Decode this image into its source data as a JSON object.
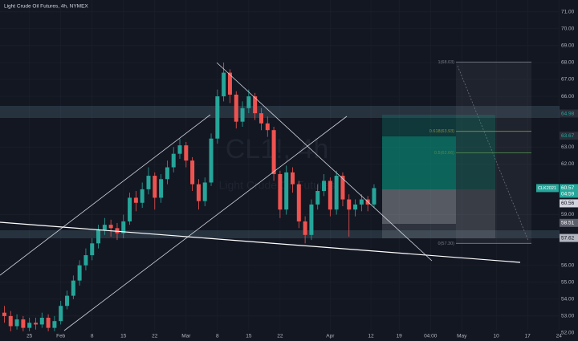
{
  "chart_data": {
    "type": "candlestick",
    "title": "Light Crude Oil Futures, 4h, NYMEX",
    "watermark": [
      "CL1!, 4h",
      "Light Crude Oil Futures"
    ],
    "up_color": "#26a69a",
    "down_color": "#ef5350",
    "x": [
      -4,
      -3,
      -2,
      -1,
      0,
      1,
      2,
      3,
      4,
      5,
      6,
      7,
      8,
      9,
      10,
      11,
      12,
      13,
      14,
      15,
      16,
      17,
      18,
      19,
      20,
      21,
      22,
      23,
      24,
      25,
      26,
      27,
      28,
      29,
      30,
      31,
      32,
      33,
      34,
      35,
      36,
      37,
      38,
      39,
      40,
      41,
      42,
      43,
      44,
      45,
      46,
      47,
      48,
      49,
      50,
      51,
      52,
      53,
      54,
      55
    ],
    "open": [
      53.2,
      53.0,
      52.4,
      52.8,
      52.3,
      52.6,
      52.5,
      52.9,
      52.3,
      52.7,
      53.6,
      54.2,
      55.1,
      56.0,
      56.6,
      57.3,
      58.1,
      58.4,
      58.2,
      57.9,
      58.6,
      60.0,
      59.7,
      60.5,
      61.3,
      60.0,
      61.1,
      61.8,
      62.6,
      63.1,
      62.2,
      60.8,
      59.8,
      60.9,
      63.5,
      66.0,
      67.4,
      66.1,
      64.5,
      65.3,
      66.0,
      65.0,
      64.4,
      64.0,
      61.4,
      59.3,
      61.5,
      60.8,
      58.6,
      57.8,
      59.6,
      60.4,
      61.0,
      59.3,
      61.3,
      59.9,
      59.3,
      59.6,
      59.9,
      59.6
    ],
    "high": [
      53.6,
      53.3,
      53.1,
      53.0,
      52.9,
      52.9,
      53.2,
      53.1,
      53.0,
      53.9,
      54.5,
      55.4,
      56.3,
      57.0,
      57.6,
      58.4,
      58.8,
      58.7,
      58.5,
      59.0,
      60.3,
      60.4,
      60.9,
      61.8,
      61.5,
      61.4,
      62.2,
      63.0,
      63.5,
      63.3,
      62.4,
      61.1,
      61.2,
      63.8,
      66.4,
      68.0,
      67.6,
      66.3,
      65.7,
      66.4,
      66.2,
      65.3,
      64.8,
      64.2,
      61.6,
      61.9,
      61.8,
      61.0,
      58.9,
      59.9,
      60.8,
      61.4,
      61.2,
      61.6,
      61.5,
      60.2,
      59.9,
      60.2,
      60.1,
      60.8
    ],
    "low": [
      52.6,
      52.0,
      52.2,
      52.0,
      52.1,
      52.2,
      52.3,
      52.1,
      52.1,
      52.5,
      53.4,
      54.0,
      54.8,
      55.7,
      56.3,
      57.0,
      57.8,
      57.7,
      57.5,
      57.6,
      58.4,
      59.2,
      59.4,
      60.2,
      59.3,
      59.7,
      60.8,
      61.5,
      62.3,
      61.8,
      60.4,
      59.3,
      59.5,
      60.7,
      63.2,
      65.7,
      65.6,
      64.1,
      64.2,
      65.0,
      64.6,
      64.0,
      63.6,
      61.0,
      58.8,
      59.0,
      60.3,
      58.2,
      57.3,
      57.5,
      59.3,
      60.1,
      58.9,
      59.0,
      59.5,
      57.7,
      58.9,
      59.2,
      59.2,
      59.4
    ],
    "close": [
      53.0,
      52.4,
      52.8,
      52.3,
      52.6,
      52.5,
      52.9,
      52.3,
      52.7,
      53.6,
      54.2,
      55.1,
      56.0,
      56.6,
      57.3,
      58.1,
      58.4,
      58.2,
      57.9,
      58.6,
      60.0,
      59.7,
      60.5,
      61.3,
      60.0,
      61.1,
      61.8,
      62.6,
      63.1,
      62.2,
      60.8,
      59.8,
      60.9,
      63.5,
      66.0,
      67.4,
      66.1,
      64.5,
      65.3,
      66.0,
      65.0,
      64.4,
      64.0,
      61.4,
      59.3,
      61.5,
      60.8,
      58.6,
      57.8,
      59.6,
      60.4,
      61.0,
      59.3,
      61.3,
      59.9,
      59.3,
      59.6,
      59.9,
      59.6,
      60.57
    ],
    "xlim": [
      -4.7,
      84.6
    ],
    "ylim": [
      52.14,
      71.7
    ],
    "xticks": [
      {
        "value": 0,
        "label": "25"
      },
      {
        "value": 5,
        "label": "Feb"
      },
      {
        "value": 10,
        "label": "8"
      },
      {
        "value": 15,
        "label": "15"
      },
      {
        "value": 20,
        "label": "22"
      },
      {
        "value": 25,
        "label": "Mar"
      },
      {
        "value": 30,
        "label": "8"
      },
      {
        "value": 35,
        "label": "15"
      },
      {
        "value": 40,
        "label": "22"
      },
      {
        "value": 48,
        "label": "Apr"
      },
      {
        "value": 54.5,
        "label": "12"
      },
      {
        "value": 59,
        "label": "19"
      },
      {
        "value": 64,
        "label": "04:00"
      },
      {
        "value": 69,
        "label": "May"
      },
      {
        "value": 74.5,
        "label": "10"
      },
      {
        "value": 79.5,
        "label": "17"
      },
      {
        "value": 84.5,
        "label": "24"
      }
    ],
    "yticks": [
      {
        "value": 71,
        "label": "71.00"
      },
      {
        "value": 70,
        "label": "70.00"
      },
      {
        "value": 69,
        "label": "69.00"
      },
      {
        "value": 68,
        "label": "68.00"
      },
      {
        "value": 67,
        "label": "67.00"
      },
      {
        "value": 66,
        "label": "66.00"
      },
      {
        "value": 63,
        "label": "63.00"
      },
      {
        "value": 62,
        "label": "62.00"
      },
      {
        "value": 59,
        "label": "59.00"
      },
      {
        "value": 56,
        "label": "56.00"
      },
      {
        "value": 55,
        "label": "55.00"
      },
      {
        "value": 54,
        "label": "54.00"
      },
      {
        "value": 53,
        "label": "53.00"
      },
      {
        "value": 52,
        "label": "52.00"
      }
    ],
    "grid": true,
    "price_tags": [
      64.98,
      63.67,
      60.57,
      60.56,
      58.51,
      57.62
    ],
    "symbol_tag": "CLK2021",
    "countdown": "04:59",
    "fib": [
      {
        "label": "1(68.03)",
        "value": 68.03,
        "color": "#787b86"
      },
      {
        "label": "0.618(63.93)",
        "value": 63.93,
        "color": "#8a8f3a"
      },
      {
        "label": "0.5(62.66)",
        "value": 62.66,
        "color": "#4f8a4f"
      },
      {
        "label": "0(57.30)",
        "value": 57.3,
        "color": "#787b86"
      }
    ]
  }
}
